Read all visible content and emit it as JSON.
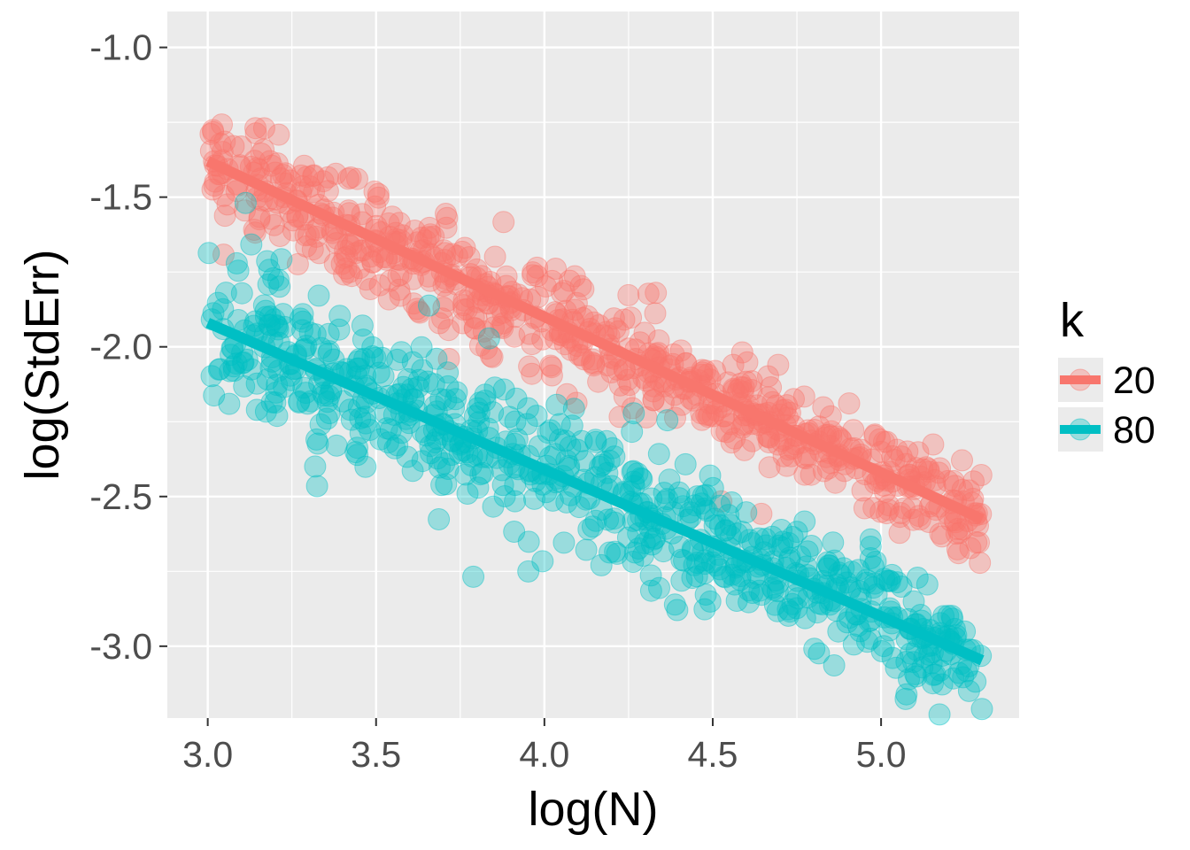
{
  "chart_data": {
    "type": "scatter",
    "xlabel": "log(N)",
    "ylabel": "log(StdErr)",
    "xlim": [
      2.88,
      5.41
    ],
    "ylim": [
      -3.24,
      -0.88
    ],
    "x_ticks": [
      3.0,
      3.5,
      4.0,
      4.5,
      5.0
    ],
    "x_tick_labels": [
      "3.0",
      "3.5",
      "4.0",
      "4.5",
      "5.0"
    ],
    "y_ticks": [
      -1.0,
      -1.5,
      -2.0,
      -2.5,
      -3.0
    ],
    "y_tick_labels": [
      "-1.0",
      "-1.5",
      "-2.0",
      "-2.5",
      "-3.0"
    ],
    "grid": true,
    "background": "#ebebeb",
    "legend": {
      "title": "k",
      "placement": "right",
      "entries": [
        "20",
        "80"
      ]
    },
    "x_range": [
      3.0,
      5.3
    ],
    "points_per_series": 700,
    "series": [
      {
        "name": "20",
        "color": "#f8766d",
        "fit_intercept": 0.18,
        "fit_slope": -0.52,
        "scatter_sd": 0.07
      },
      {
        "name": "80",
        "color": "#00bfc4",
        "fit_intercept": -0.45,
        "fit_slope": -0.49,
        "scatter_sd": 0.09
      }
    ]
  }
}
